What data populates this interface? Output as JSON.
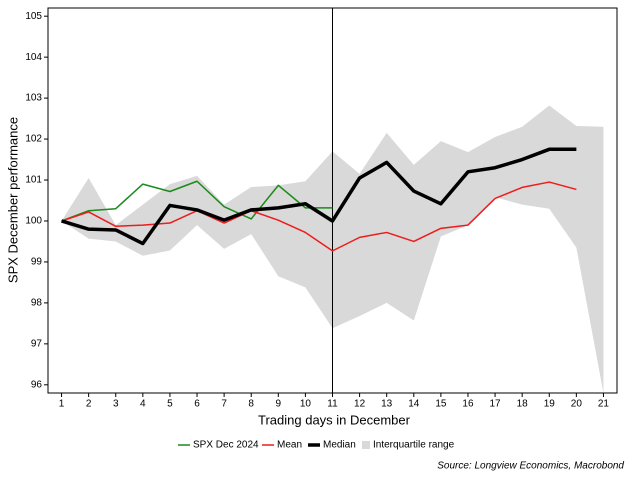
{
  "chart_data": {
    "type": "line",
    "xlabel": "Trading days in December",
    "ylabel": "SPX December performance",
    "source": "Source: Longview Economics, Macrobond",
    "x": [
      1,
      2,
      3,
      4,
      5,
      6,
      7,
      8,
      9,
      10,
      11,
      12,
      13,
      14,
      15,
      16,
      17,
      18,
      19,
      20,
      21
    ],
    "xlim": [
      0.5,
      21.5
    ],
    "xticks": [
      1,
      2,
      3,
      4,
      5,
      6,
      7,
      8,
      9,
      10,
      11,
      12,
      13,
      14,
      15,
      16,
      17,
      18,
      19,
      20,
      21
    ],
    "ylim": [
      95.8,
      105.2
    ],
    "yticks": [
      96,
      97,
      98,
      99,
      100,
      101,
      102,
      103,
      104,
      105
    ],
    "vline": 11,
    "band": {
      "name": "Interquartile range",
      "color": "#d9d9d9",
      "high": [
        100,
        101.05,
        99.9,
        100.4,
        100.9,
        101.1,
        100.4,
        100.83,
        100.87,
        100.97,
        101.7,
        101.15,
        102.15,
        101.37,
        101.95,
        101.68,
        102.05,
        102.3,
        102.82,
        102.32,
        102.3
      ],
      "low": [
        100,
        99.57,
        99.5,
        99.15,
        99.28,
        99.9,
        99.32,
        99.68,
        98.65,
        98.38,
        97.38,
        97.68,
        98.0,
        97.57,
        99.62,
        99.9,
        100.58,
        100.4,
        100.3,
        99.35,
        95.8
      ]
    },
    "series": [
      {
        "name": "SPX Dec 2024",
        "color": "#1a8a1a",
        "width": 1.5,
        "values": [
          100,
          100.25,
          100.3,
          100.9,
          100.72,
          100.97,
          100.35,
          100.05,
          100.87,
          100.32,
          100.32,
          null,
          null,
          null,
          null,
          null,
          null,
          null,
          null,
          null,
          null
        ]
      },
      {
        "name": "Mean",
        "color": "#ee1c1c",
        "width": 1.5,
        "values": [
          100,
          100.22,
          99.87,
          99.9,
          99.95,
          100.25,
          99.95,
          100.25,
          100.02,
          99.72,
          99.27,
          99.6,
          99.72,
          99.5,
          99.82,
          99.9,
          100.55,
          100.82,
          100.95,
          100.77,
          null
        ]
      },
      {
        "name": "Median",
        "color": "#000000",
        "width": 3.5,
        "values": [
          100,
          99.8,
          99.78,
          99.45,
          100.38,
          100.27,
          100.02,
          100.27,
          100.32,
          100.42,
          100,
          101.05,
          101.43,
          100.73,
          100.42,
          101.2,
          101.3,
          101.5,
          101.75,
          101.75,
          null
        ]
      }
    ]
  }
}
